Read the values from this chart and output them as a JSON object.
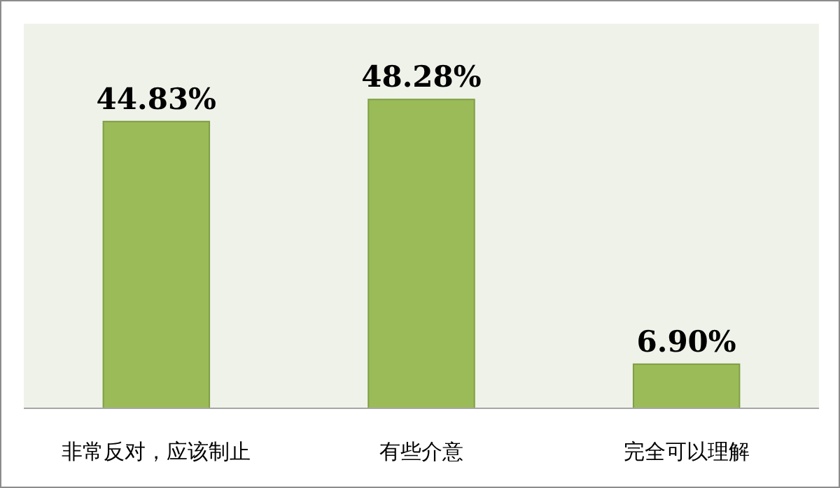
{
  "chart_data": {
    "type": "bar",
    "categories": [
      "非常反对，应该制止",
      "有些介意",
      "完全可以理解"
    ],
    "values": [
      44.83,
      48.28,
      6.9
    ],
    "value_labels": [
      "44.83%",
      "48.28%",
      "6.90%"
    ],
    "color": "#9bbb59"
  }
}
